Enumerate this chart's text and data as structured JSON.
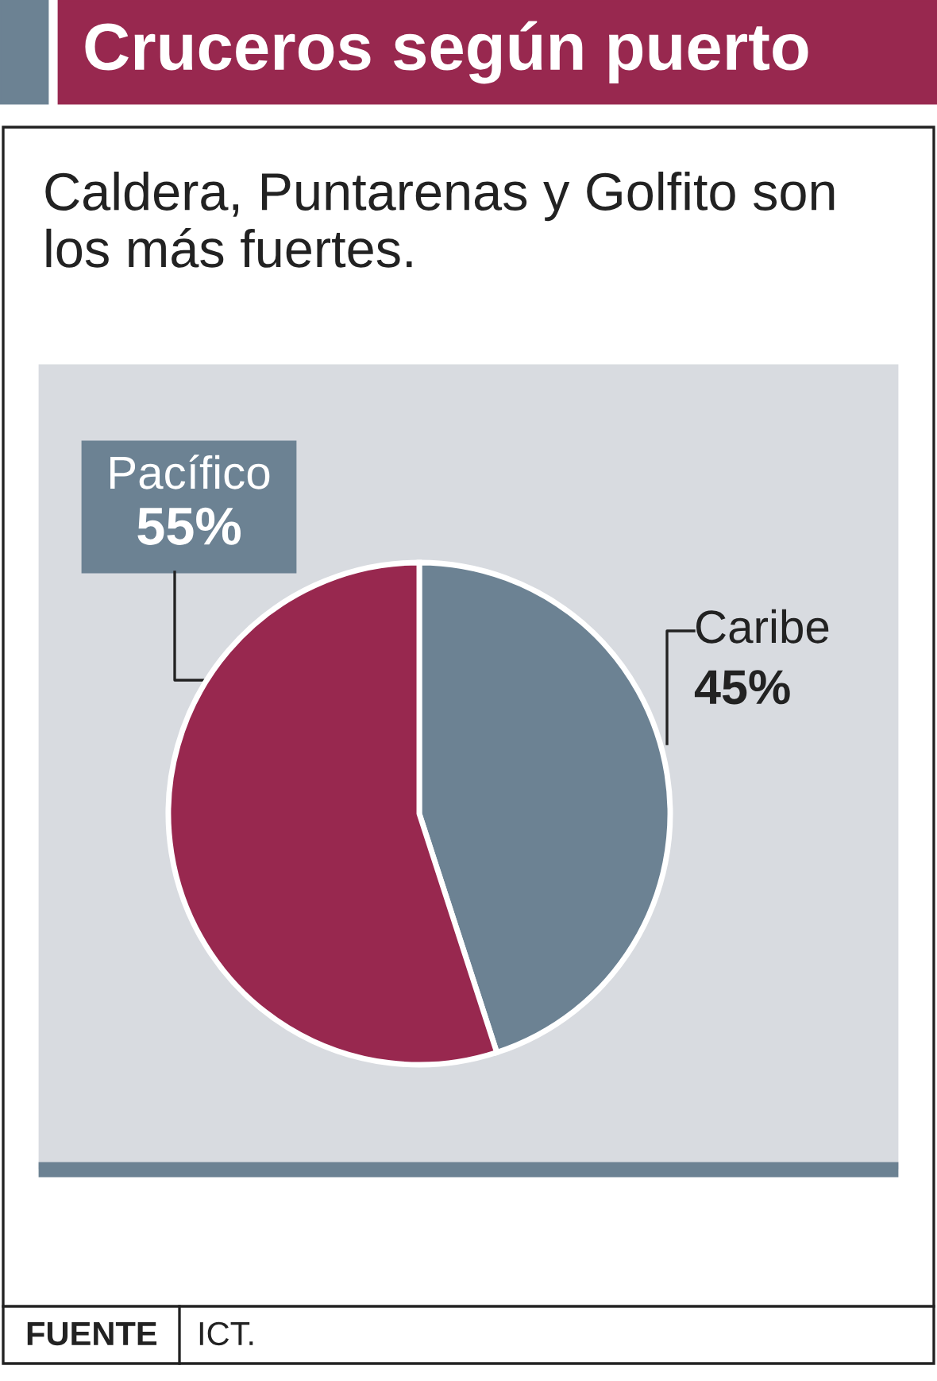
{
  "chart_data": {
    "type": "pie",
    "title": "Cruceros según puerto",
    "subtitle": "Caldera, Puntarenas y Golfito son los más fuertes.",
    "categories": [
      "Caribe",
      "Pacífico"
    ],
    "values": [
      45,
      55
    ],
    "value_labels": [
      "45%",
      "55%"
    ],
    "colors": [
      "#6c8293",
      "#98284f"
    ],
    "annotations": [
      "FUENTE",
      "ICT."
    ]
  }
}
